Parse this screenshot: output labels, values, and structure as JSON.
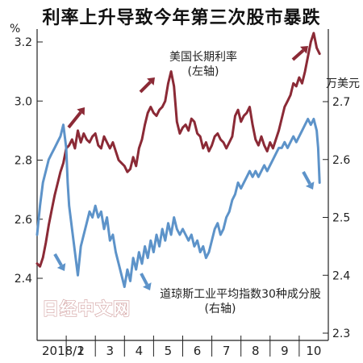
{
  "title": "利率上升导致今年第三次股市暴跌",
  "watermark": "日经中文网",
  "chart_data": {
    "type": "line",
    "title": "利率上升导致今年第三次股市暴跌",
    "x_categories": [
      "2018/1",
      "2",
      "3",
      "4",
      "5",
      "6",
      "7",
      "8",
      "9",
      "10"
    ],
    "left_axis": {
      "unit": "%",
      "ticks": [
        3.2,
        3.0,
        2.8,
        2.6,
        2.4
      ],
      "range": [
        2.4,
        3.2
      ]
    },
    "right_axis": {
      "unit": "万美元",
      "ticks": [
        2.7,
        2.6,
        2.5,
        2.4,
        2.3
      ],
      "range": [
        2.3,
        2.7
      ]
    },
    "series": [
      {
        "name": "美国长期利率",
        "axis_note": "(左轴)",
        "axis": "left",
        "color": "#8b2a36",
        "points": [
          [
            0.0,
            2.45
          ],
          [
            0.1,
            2.44
          ],
          [
            0.2,
            2.47
          ],
          [
            0.3,
            2.52
          ],
          [
            0.4,
            2.58
          ],
          [
            0.5,
            2.63
          ],
          [
            0.6,
            2.68
          ],
          [
            0.7,
            2.72
          ],
          [
            0.8,
            2.76
          ],
          [
            0.9,
            2.79
          ],
          [
            1.0,
            2.84
          ],
          [
            1.1,
            2.85
          ],
          [
            1.2,
            2.87
          ],
          [
            1.3,
            2.84
          ],
          [
            1.4,
            2.9
          ],
          [
            1.5,
            2.86
          ],
          [
            1.6,
            2.89
          ],
          [
            1.7,
            2.87
          ],
          [
            1.8,
            2.86
          ],
          [
            1.9,
            2.88
          ],
          [
            2.0,
            2.89
          ],
          [
            2.1,
            2.85
          ],
          [
            2.2,
            2.84
          ],
          [
            2.3,
            2.88
          ],
          [
            2.4,
            2.86
          ],
          [
            2.5,
            2.84
          ],
          [
            2.6,
            2.86
          ],
          [
            2.7,
            2.83
          ],
          [
            2.8,
            2.8
          ],
          [
            2.9,
            2.79
          ],
          [
            3.0,
            2.78
          ],
          [
            3.1,
            2.76
          ],
          [
            3.2,
            2.77
          ],
          [
            3.3,
            2.81
          ],
          [
            3.4,
            2.78
          ],
          [
            3.5,
            2.84
          ],
          [
            3.6,
            2.87
          ],
          [
            3.7,
            2.92
          ],
          [
            3.8,
            2.96
          ],
          [
            3.9,
            2.98
          ],
          [
            4.0,
            2.96
          ],
          [
            4.1,
            2.95
          ],
          [
            4.2,
            2.97
          ],
          [
            4.3,
            2.98
          ],
          [
            4.4,
            3.0
          ],
          [
            4.5,
            3.06
          ],
          [
            4.6,
            3.1
          ],
          [
            4.7,
            3.05
          ],
          [
            4.8,
            2.93
          ],
          [
            4.9,
            2.89
          ],
          [
            5.0,
            2.91
          ],
          [
            5.1,
            2.92
          ],
          [
            5.2,
            2.9
          ],
          [
            5.3,
            2.94
          ],
          [
            5.4,
            2.93
          ],
          [
            5.5,
            2.89
          ],
          [
            5.6,
            2.88
          ],
          [
            5.7,
            2.84
          ],
          [
            5.8,
            2.86
          ],
          [
            5.9,
            2.83
          ],
          [
            6.0,
            2.85
          ],
          [
            6.1,
            2.88
          ],
          [
            6.2,
            2.89
          ],
          [
            6.3,
            2.87
          ],
          [
            6.4,
            2.86
          ],
          [
            6.5,
            2.84
          ],
          [
            6.6,
            2.86
          ],
          [
            6.7,
            2.88
          ],
          [
            6.8,
            2.95
          ],
          [
            6.9,
            2.97
          ],
          [
            7.0,
            2.93
          ],
          [
            7.1,
            2.95
          ],
          [
            7.2,
            2.96
          ],
          [
            7.3,
            2.98
          ],
          [
            7.4,
            2.92
          ],
          [
            7.5,
            2.87
          ],
          [
            7.6,
            2.85
          ],
          [
            7.7,
            2.88
          ],
          [
            7.8,
            2.85
          ],
          [
            7.9,
            2.83
          ],
          [
            8.0,
            2.86
          ],
          [
            8.1,
            2.84
          ],
          [
            8.2,
            2.87
          ],
          [
            8.3,
            2.9
          ],
          [
            8.4,
            2.94
          ],
          [
            8.5,
            2.98
          ],
          [
            8.6,
            3.0
          ],
          [
            8.7,
            3.02
          ],
          [
            8.8,
            3.06
          ],
          [
            8.9,
            3.05
          ],
          [
            9.0,
            3.08
          ],
          [
            9.1,
            3.06
          ],
          [
            9.2,
            3.1
          ],
          [
            9.3,
            3.15
          ],
          [
            9.4,
            3.2
          ],
          [
            9.5,
            3.23
          ],
          [
            9.6,
            3.18
          ],
          [
            9.7,
            3.16
          ]
        ]
      },
      {
        "name": "道琼斯工业平均指数30种成分股",
        "axis_note": "(右轴)",
        "axis": "right",
        "color": "#5d93c9",
        "points": [
          [
            0.0,
            2.47
          ],
          [
            0.1,
            2.52
          ],
          [
            0.2,
            2.56
          ],
          [
            0.3,
            2.58
          ],
          [
            0.4,
            2.6
          ],
          [
            0.5,
            2.61
          ],
          [
            0.6,
            2.62
          ],
          [
            0.7,
            2.63
          ],
          [
            0.8,
            2.64
          ],
          [
            0.9,
            2.66
          ],
          [
            1.0,
            2.62
          ],
          [
            1.05,
            2.56
          ],
          [
            1.1,
            2.52
          ],
          [
            1.2,
            2.48
          ],
          [
            1.3,
            2.44
          ],
          [
            1.4,
            2.4
          ],
          [
            1.5,
            2.45
          ],
          [
            1.6,
            2.47
          ],
          [
            1.7,
            2.49
          ],
          [
            1.8,
            2.51
          ],
          [
            1.9,
            2.5
          ],
          [
            2.0,
            2.52
          ],
          [
            2.1,
            2.5
          ],
          [
            2.2,
            2.51
          ],
          [
            2.3,
            2.48
          ],
          [
            2.4,
            2.5
          ],
          [
            2.5,
            2.46
          ],
          [
            2.6,
            2.47
          ],
          [
            2.7,
            2.44
          ],
          [
            2.8,
            2.42
          ],
          [
            2.9,
            2.4
          ],
          [
            3.0,
            2.38
          ],
          [
            3.1,
            2.41
          ],
          [
            3.2,
            2.39
          ],
          [
            3.3,
            2.43
          ],
          [
            3.4,
            2.41
          ],
          [
            3.5,
            2.44
          ],
          [
            3.6,
            2.42
          ],
          [
            3.7,
            2.45
          ],
          [
            3.8,
            2.43
          ],
          [
            3.9,
            2.46
          ],
          [
            4.0,
            2.44
          ],
          [
            4.1,
            2.47
          ],
          [
            4.2,
            2.45
          ],
          [
            4.3,
            2.48
          ],
          [
            4.4,
            2.46
          ],
          [
            4.5,
            2.49
          ],
          [
            4.6,
            2.47
          ],
          [
            4.7,
            2.5
          ],
          [
            4.8,
            2.48
          ],
          [
            4.9,
            2.47
          ],
          [
            5.0,
            2.48
          ],
          [
            5.1,
            2.47
          ],
          [
            5.2,
            2.46
          ],
          [
            5.3,
            2.47
          ],
          [
            5.4,
            2.45
          ],
          [
            5.5,
            2.46
          ],
          [
            5.6,
            2.44
          ],
          [
            5.7,
            2.45
          ],
          [
            5.8,
            2.43
          ],
          [
            5.9,
            2.44
          ],
          [
            6.0,
            2.46
          ],
          [
            6.1,
            2.48
          ],
          [
            6.2,
            2.49
          ],
          [
            6.3,
            2.47
          ],
          [
            6.4,
            2.48
          ],
          [
            6.5,
            2.5
          ],
          [
            6.6,
            2.51
          ],
          [
            6.7,
            2.53
          ],
          [
            6.8,
            2.54
          ],
          [
            6.9,
            2.56
          ],
          [
            7.0,
            2.55
          ],
          [
            7.1,
            2.56
          ],
          [
            7.2,
            2.57
          ],
          [
            7.3,
            2.58
          ],
          [
            7.4,
            2.57
          ],
          [
            7.5,
            2.58
          ],
          [
            7.6,
            2.57
          ],
          [
            7.7,
            2.58
          ],
          [
            7.8,
            2.59
          ],
          [
            7.9,
            2.58
          ],
          [
            8.0,
            2.59
          ],
          [
            8.1,
            2.6
          ],
          [
            8.2,
            2.61
          ],
          [
            8.3,
            2.62
          ],
          [
            8.4,
            2.62
          ],
          [
            8.5,
            2.63
          ],
          [
            8.6,
            2.62
          ],
          [
            8.7,
            2.63
          ],
          [
            8.8,
            2.64
          ],
          [
            8.9,
            2.63
          ],
          [
            9.0,
            2.64
          ],
          [
            9.1,
            2.65
          ],
          [
            9.2,
            2.66
          ],
          [
            9.3,
            2.67
          ],
          [
            9.4,
            2.66
          ],
          [
            9.5,
            2.67
          ],
          [
            9.6,
            2.65
          ],
          [
            9.65,
            2.62
          ],
          [
            9.7,
            2.56
          ]
        ]
      }
    ],
    "annotations": [
      {
        "text": "美国长期利率",
        "line2": "(左轴)"
      },
      {
        "text": "道琼斯工业平均指数30种成分股",
        "line2": "(右轴)"
      }
    ],
    "grid": false
  }
}
